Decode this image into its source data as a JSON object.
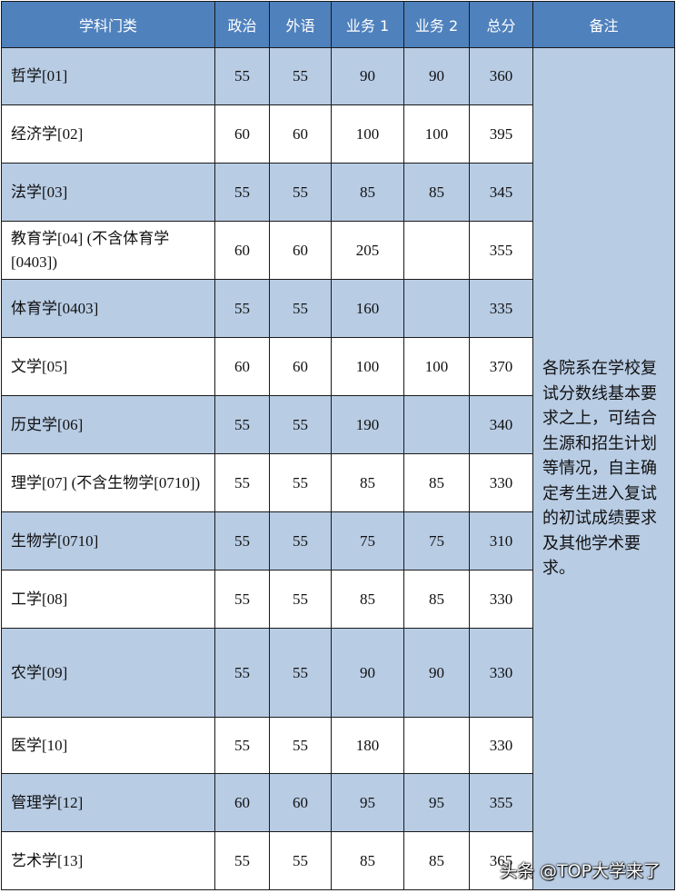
{
  "headers": [
    "学科门类",
    "政治",
    "外语",
    "业务 1",
    "业务 2",
    "总分",
    "备注"
  ],
  "rows": [
    {
      "subject": "哲学[01]",
      "politics": "55",
      "language": "55",
      "course1": "90",
      "course2": "90",
      "total": "360"
    },
    {
      "subject": "经济学[02]",
      "politics": "60",
      "language": "60",
      "course1": "100",
      "course2": "100",
      "total": "395"
    },
    {
      "subject": "法学[03]",
      "politics": "55",
      "language": "55",
      "course1": "85",
      "course2": "85",
      "total": "345"
    },
    {
      "subject": "教育学[04] (不含体育学[0403])",
      "politics": "60",
      "language": "60",
      "course1": "205",
      "course2": "",
      "total": "355"
    },
    {
      "subject": "体育学[0403]",
      "politics": "55",
      "language": "55",
      "course1": "160",
      "course2": "",
      "total": "335"
    },
    {
      "subject": "文学[05]",
      "politics": "60",
      "language": "60",
      "course1": "100",
      "course2": "100",
      "total": "370"
    },
    {
      "subject": "历史学[06]",
      "politics": "55",
      "language": "55",
      "course1": "190",
      "course2": "",
      "total": "340"
    },
    {
      "subject": "理学[07] (不含生物学[0710])",
      "politics": "55",
      "language": "55",
      "course1": "85",
      "course2": "85",
      "total": "330"
    },
    {
      "subject": "生物学[0710]",
      "politics": "55",
      "language": "55",
      "course1": "75",
      "course2": "75",
      "total": "310"
    },
    {
      "subject": "工学[08]",
      "politics": "55",
      "language": "55",
      "course1": "85",
      "course2": "85",
      "total": "330"
    },
    {
      "subject": "农学[09]",
      "politics": "55",
      "language": "55",
      "course1": "90",
      "course2": "90",
      "total": "330"
    },
    {
      "subject": "医学[10]",
      "politics": "55",
      "language": "55",
      "course1": "180",
      "course2": "",
      "total": "330"
    },
    {
      "subject": "管理学[12]",
      "politics": "60",
      "language": "60",
      "course1": "95",
      "course2": "95",
      "total": "355"
    },
    {
      "subject": "艺术学[13]",
      "politics": "55",
      "language": "55",
      "course1": "85",
      "course2": "85",
      "total": "365"
    }
  ],
  "remark": "各院系在学校复试分数线基本要求之上，可结合生源和招生计划等情况，自主确定考生进入复试的初试成绩要求及其他学术要求。",
  "watermark": "头条 @TOP大学来了",
  "colors": {
    "header": "#4f81bd",
    "row_shade": "#b8cce4"
  }
}
